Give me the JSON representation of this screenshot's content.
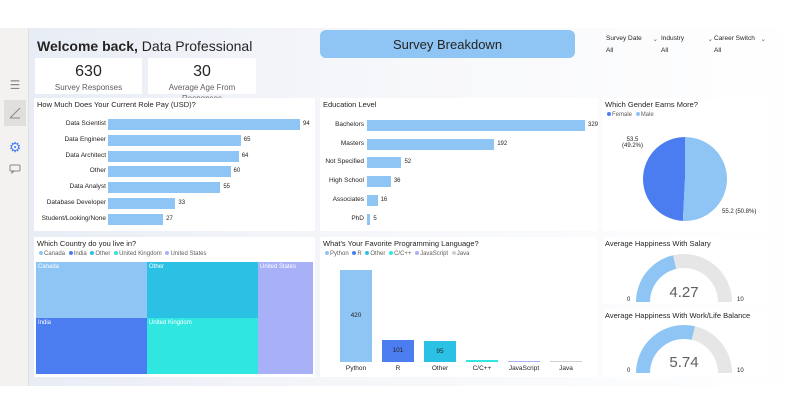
{
  "header": {
    "welcome_bold": "Welcome back,",
    "welcome_rest": " Data Professional",
    "banner_title": "Survey Breakdown"
  },
  "kpis": [
    {
      "value": "630",
      "label": "Survey Responses"
    },
    {
      "value": "30",
      "label": "Average Age From Responses"
    }
  ],
  "slicers": [
    {
      "label": "Survey Date",
      "value": "All"
    },
    {
      "label": "Industry",
      "value": "All"
    },
    {
      "label": "Career Switch",
      "value": "All"
    }
  ],
  "salary": {
    "title": "How Much Does Your Current Role Pay (USD)?",
    "items": [
      {
        "label": "Data Scientist",
        "value": 94
      },
      {
        "label": "Data Engineer",
        "value": 65
      },
      {
        "label": "Data Architect",
        "value": 64
      },
      {
        "label": "Other",
        "value": 60
      },
      {
        "label": "Data Analyst",
        "value": 55
      },
      {
        "label": "Database Developer",
        "value": 33
      },
      {
        "label": "Student/Looking/None",
        "value": 27
      }
    ]
  },
  "education": {
    "title": "Education Level",
    "items": [
      {
        "label": "Bachelors",
        "value": 329
      },
      {
        "label": "Masters",
        "value": 192
      },
      {
        "label": "Not Specified",
        "value": 52
      },
      {
        "label": "High School",
        "value": 36
      },
      {
        "label": "Associates",
        "value": 16
      },
      {
        "label": "PhD",
        "value": 5
      }
    ]
  },
  "gender": {
    "title": "Which Gender Earns More?",
    "legend": [
      {
        "label": "Female",
        "color": "#4c7df0"
      },
      {
        "label": "Male",
        "color": "#8ec5f4"
      }
    ],
    "female_label": "53.5",
    "female_pct": "(49.2%)",
    "male_label": "55.2 (50.8%)",
    "female_share": 0.492
  },
  "country": {
    "title": "Which Country do you live in?",
    "legend": [
      {
        "label": "Canada",
        "color": "#8ec5f4"
      },
      {
        "label": "India",
        "color": "#4c7df0"
      },
      {
        "label": "Other",
        "color": "#2bc1e4"
      },
      {
        "label": "United Kingdom",
        "color": "#30e6e0"
      },
      {
        "label": "United States",
        "color": "#a8b0f8"
      }
    ],
    "tiles": {
      "canada": "Canada",
      "india": "India",
      "other": "Other",
      "uk": "United Kingdom",
      "us": "United States"
    }
  },
  "language": {
    "title": "What's Your Favorite Programming Language?",
    "legend": [
      {
        "label": "Python",
        "color": "#8ec5f4"
      },
      {
        "label": "R",
        "color": "#4c7df0"
      },
      {
        "label": "Other",
        "color": "#2bc1e4"
      },
      {
        "label": "C/C++",
        "color": "#30e6e0"
      },
      {
        "label": "JavaScript",
        "color": "#a8b0f8"
      },
      {
        "label": "Java",
        "color": "#d0d0d0"
      }
    ],
    "items": [
      {
        "label": "Python",
        "value": 420,
        "value_label": "420"
      },
      {
        "label": "R",
        "value": 101,
        "value_label": "101"
      },
      {
        "label": "Other",
        "value": 95,
        "value_label": "95"
      },
      {
        "label": "C/C++",
        "value": 8,
        "value_label": ""
      },
      {
        "label": "JavaScript",
        "value": 5,
        "value_label": ""
      },
      {
        "label": "Java",
        "value": 1,
        "value_label": ""
      }
    ]
  },
  "happiness_salary": {
    "title": "Average Happiness With Salary",
    "value": "4.27",
    "value_num": 4.27,
    "min": "0",
    "max": "10"
  },
  "happiness_wlb": {
    "title": "Average Happiness With Work/Life Balance",
    "value": "5.74",
    "value_num": 5.74,
    "min": "0",
    "max": "10"
  }
}
